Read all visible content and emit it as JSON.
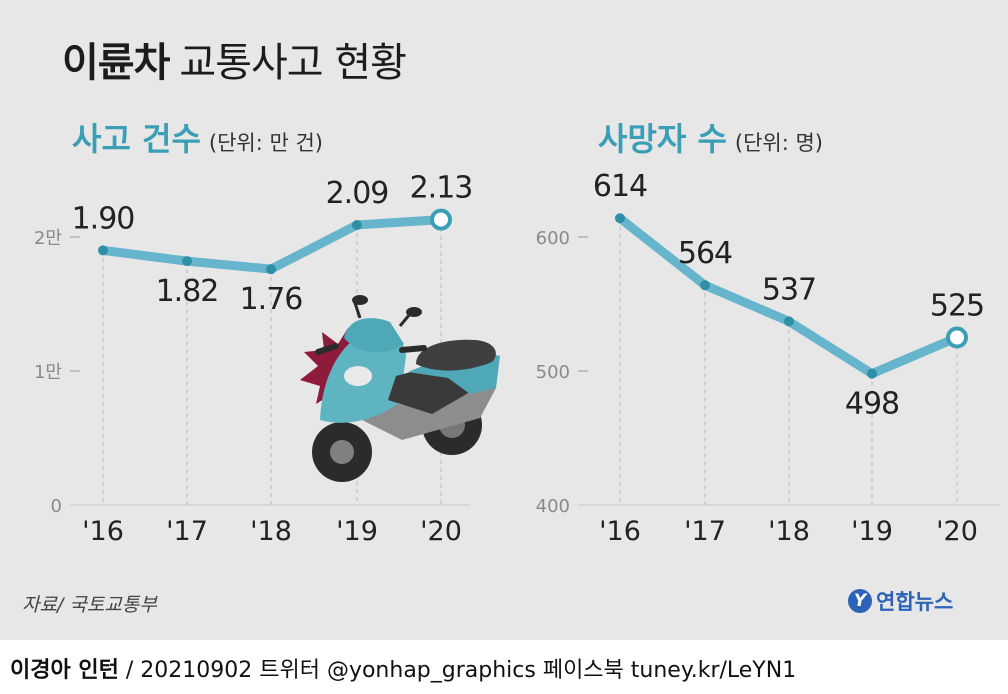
{
  "header": {
    "title_bold": "이륜차",
    "title_rest": "교통사고 현황"
  },
  "charts": {
    "accidents": {
      "title": "사고 건수",
      "unit": "(단위: 만 건)"
    },
    "deaths": {
      "title": "사망자 수",
      "unit": "(단위: 명)"
    }
  },
  "chart_data": [
    {
      "type": "line",
      "title": "사고 건수",
      "unit": "(단위: 만 건)",
      "categories": [
        "'16",
        "'17",
        "'18",
        "'19",
        "'20"
      ],
      "values": [
        1.9,
        1.82,
        1.76,
        2.09,
        2.13
      ],
      "data_labels": [
        "1.90",
        "1.82",
        "1.76",
        "2.09",
        "2.13"
      ],
      "yticks": [
        0,
        1,
        2
      ],
      "ytick_labels": [
        "0",
        "1만",
        "2만"
      ],
      "ylim": [
        0,
        2.13
      ],
      "grid": false
    },
    {
      "type": "line",
      "title": "사망자 수",
      "unit": "(단위: 명)",
      "categories": [
        "'16",
        "'17",
        "'18",
        "'19",
        "'20"
      ],
      "values": [
        614,
        564,
        537,
        498,
        525
      ],
      "data_labels": [
        "614",
        "564",
        "537",
        "498",
        "525"
      ],
      "yticks": [
        400,
        500,
        600
      ],
      "ytick_labels": [
        "400",
        "500",
        "600"
      ],
      "ylim": [
        400,
        614
      ],
      "grid": false
    }
  ],
  "colors": {
    "line": "#67b5cc",
    "marker": "#3a9fb5",
    "background": "#e7e7e7",
    "axis": "#999999",
    "title_accent": "#3a9fb5"
  },
  "source": "자료/ 국토교통부",
  "logo": {
    "mark": "Y",
    "text": "연합뉴스"
  },
  "footer": {
    "author": "이경아 인턴",
    "credit": " / 20210902 트위터 @yonhap_graphics  페이스북 tuney.kr/LeYN1"
  }
}
